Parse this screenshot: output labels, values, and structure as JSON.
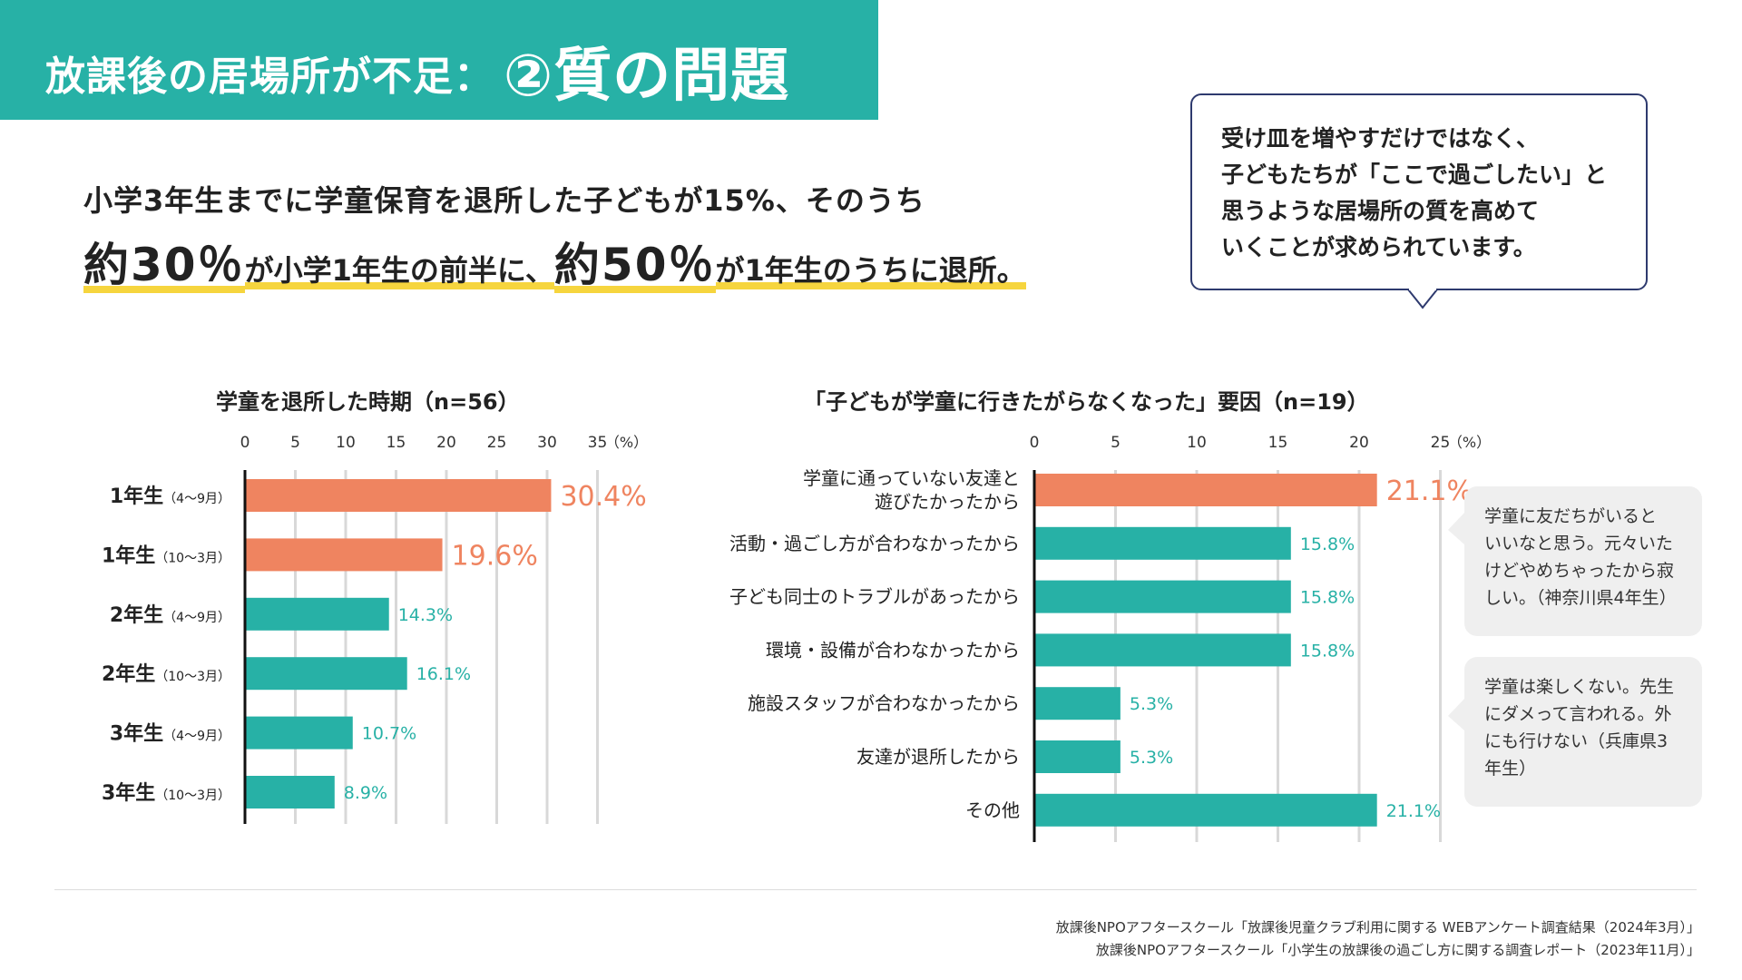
{
  "header": {
    "title": "放課後の居場所が不足：",
    "title_emphasis": "②質の問題"
  },
  "lead": {
    "line1": "小学3年生までに学童保育を退所した子どもが15%、そのうち",
    "p1": "約30％",
    "p2": "が小学1年生の前半に、",
    "p3": "約50％",
    "p4": "が1年生のうちに退所。"
  },
  "callout": {
    "text": "受け皿を増やすだけではなく、\n子どもたちが「ここで過ごしたい」と\n思うような居場所の質を高めて\nいくことが求められています。"
  },
  "colors": {
    "teal": "#27b1a6",
    "orange": "#ef8460",
    "navy": "#2e3a6e",
    "highlight": "#f6d53e",
    "grid": "#d8d8d8"
  },
  "quotes": [
    {
      "text": "学童に友だちがいると\nいいなと思う。元々いた\nけどやめちゃったから寂\nしい。（神奈川県4年生）"
    },
    {
      "text": "学童は楽しくない。先生\nにダメって言われる。外\nにも行けない（兵庫県3\n年生）"
    }
  ],
  "sources": [
    "放課後NPOアフタースクール「放課後児童クラブ利用に関する WEBアンケート調査結果（2024年3月）」",
    "放課後NPOアフタースクール「小学生の放課後の過ごし方に関する調査レポート（2023年11月）」"
  ],
  "chart_data": [
    {
      "type": "bar",
      "orientation": "horizontal",
      "title": "学童を退所した時期（n=56）",
      "unit_label": "（%）",
      "xlim": [
        0,
        35
      ],
      "ticks": [
        0,
        5,
        10,
        15,
        20,
        25,
        30,
        35
      ],
      "categories": [
        {
          "main": "1年生",
          "sub": "（4〜9月）"
        },
        {
          "main": "1年生",
          "sub": "（10〜3月）"
        },
        {
          "main": "2年生",
          "sub": "（4〜9月）"
        },
        {
          "main": "2年生",
          "sub": "（10〜3月）"
        },
        {
          "main": "3年生",
          "sub": "（4〜9月）"
        },
        {
          "main": "3年生",
          "sub": "（10〜3月）"
        }
      ],
      "values": [
        30.4,
        19.6,
        14.3,
        16.1,
        10.7,
        8.9
      ],
      "labels": [
        "30.4%",
        "19.6%",
        "14.3%",
        "16.1%",
        "10.7%",
        "8.9%"
      ],
      "highlight": [
        true,
        true,
        false,
        false,
        false,
        false
      ],
      "grid": true
    },
    {
      "type": "bar",
      "orientation": "horizontal",
      "title": "「子どもが学童に行きたがらなくなった」要因（n=19）",
      "unit_label": "（%）",
      "xlim": [
        0,
        25
      ],
      "ticks": [
        0,
        5,
        10,
        15,
        20,
        25
      ],
      "categories": [
        [
          "学童に通っていない友達と",
          "遊びたかったから"
        ],
        [
          "活動・過ごし方が合わなかったから"
        ],
        [
          "子ども同士のトラブルがあったから"
        ],
        [
          "環境・設備が合わなかったから"
        ],
        [
          "施設スタッフが合わなかったから"
        ],
        [
          "友達が退所したから"
        ],
        [
          "その他"
        ]
      ],
      "values": [
        21.1,
        15.8,
        15.8,
        15.8,
        5.3,
        5.3,
        21.1
      ],
      "labels": [
        "21.1%",
        "15.8%",
        "15.8%",
        "15.8%",
        "5.3%",
        "5.3%",
        "21.1%"
      ],
      "highlight": [
        true,
        false,
        false,
        false,
        false,
        false,
        false
      ],
      "grid": true
    }
  ]
}
